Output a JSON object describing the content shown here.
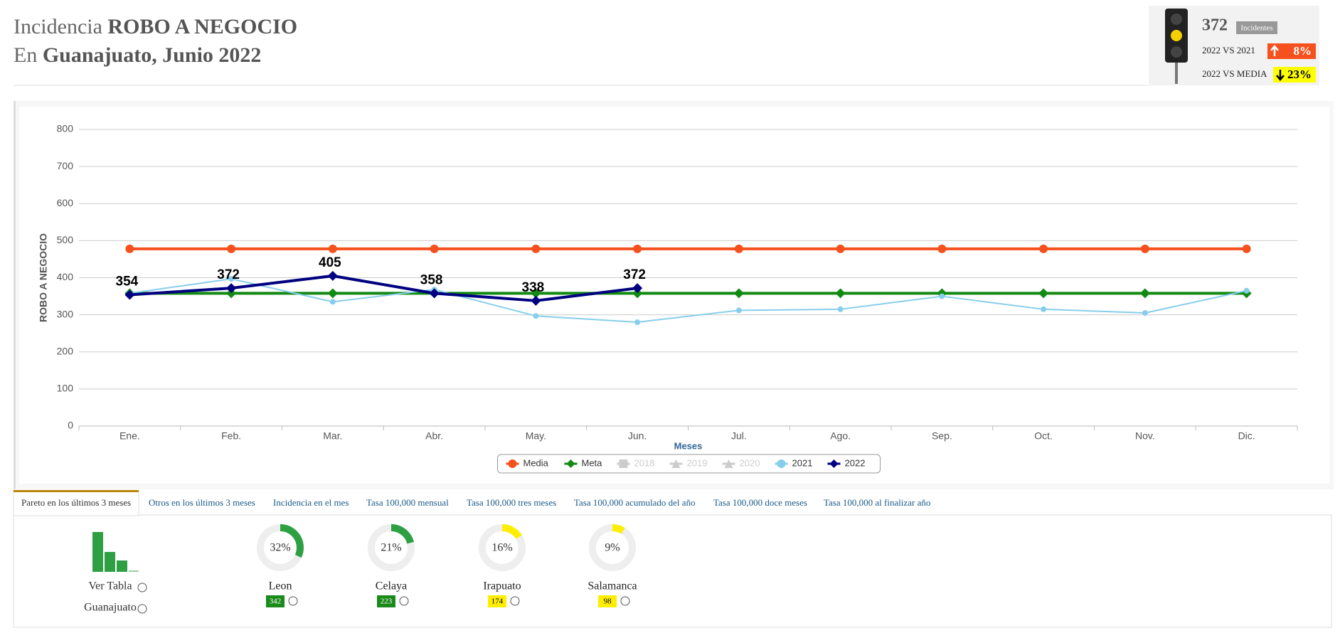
{
  "header": {
    "line1_prefix": "Incidencia",
    "line1_bold": "ROBO A NEGOCIO",
    "line2_prefix": "En",
    "line2_bold": "Guanajuato, Junio 2022"
  },
  "indicator": {
    "value": "372",
    "unit": "Incidentes",
    "comparisons": [
      {
        "label": "2022 VS 2021",
        "change": "8%",
        "color": "#f4511e"
      },
      {
        "label": "2022 VS MEDIA",
        "change": "23%",
        "color": "#ffff00"
      }
    ]
  },
  "chart_data": {
    "type": "line",
    "x_label": "Meses",
    "y_label": "ROBO A NEGOCIO",
    "categories": [
      "Ene.",
      "Feb.",
      "Mar.",
      "Abr.",
      "May.",
      "Jun.",
      "Jul.",
      "Ago.",
      "Sep.",
      "Oct.",
      "Nov.",
      "Dic."
    ],
    "ylim": [
      0,
      800
    ],
    "yticks": [
      0,
      100,
      200,
      300,
      400,
      500,
      600,
      700,
      800
    ],
    "grid": true,
    "legend": "bottom",
    "series": [
      {
        "name": "Media",
        "color": "#f4511e",
        "marker": "circle",
        "width": 4,
        "visible": true,
        "values": [
          478,
          478,
          478,
          478,
          478,
          478,
          478,
          478,
          478,
          478,
          478,
          478
        ]
      },
      {
        "name": "Meta",
        "color": "#138a13",
        "marker": "diamond",
        "width": 4,
        "visible": true,
        "values": [
          358,
          358,
          358,
          358,
          358,
          358,
          358,
          358,
          358,
          358,
          358,
          358
        ]
      },
      {
        "name": "2018",
        "color": "#cccccc",
        "marker": "square",
        "width": 2,
        "visible": false,
        "values": [
          null,
          null,
          null,
          null,
          null,
          null,
          null,
          null,
          null,
          null,
          null,
          null
        ]
      },
      {
        "name": "2019",
        "color": "#cccccc",
        "marker": "triangle",
        "width": 2,
        "visible": false,
        "values": [
          null,
          null,
          null,
          null,
          null,
          null,
          null,
          null,
          null,
          null,
          null,
          null
        ]
      },
      {
        "name": "2020",
        "color": "#cccccc",
        "marker": "triangle",
        "width": 2,
        "visible": false,
        "values": [
          null,
          null,
          null,
          null,
          null,
          null,
          null,
          null,
          null,
          null,
          null,
          null
        ]
      },
      {
        "name": "2021",
        "color": "#87ceeb",
        "marker": "circle",
        "width": 2,
        "visible": true,
        "values": [
          358,
          397,
          335,
          368,
          297,
          280,
          312,
          315,
          350,
          315,
          305,
          365
        ]
      },
      {
        "name": "2022",
        "color": "#000080",
        "marker": "diamond",
        "width": 4,
        "visible": true,
        "data_labels": true,
        "values": [
          354,
          372,
          405,
          358,
          338,
          372,
          null,
          null,
          null,
          null,
          null,
          null
        ]
      }
    ]
  },
  "tabs": [
    "Pareto en los últimos 3 meses",
    "Otros en los últimos 3 meses",
    "Incidencia en el mes",
    "Tasa 100,000 mensual",
    "Tasa 100,000 tres meses",
    "Tasa 100,000 acumulado del año",
    "Tasa 100,000 doce meses",
    "Tasa 100,000 al finalizar año"
  ],
  "pareto": {
    "link1": "Ver Tabla",
    "link2": "Guanajuato",
    "items": [
      {
        "name": "Leon",
        "percent": 32,
        "percent_label": "32%",
        "count": 342,
        "color": "#2ea043"
      },
      {
        "name": "Celaya",
        "percent": 21,
        "percent_label": "21%",
        "count": 223,
        "color": "#2ea043"
      },
      {
        "name": "Irapuato",
        "percent": 16,
        "percent_label": "16%",
        "count": 174,
        "color": "#ffee00"
      },
      {
        "name": "Salamanca",
        "percent": 9,
        "percent_label": "9%",
        "count": 98,
        "color": "#ffee00"
      }
    ]
  }
}
